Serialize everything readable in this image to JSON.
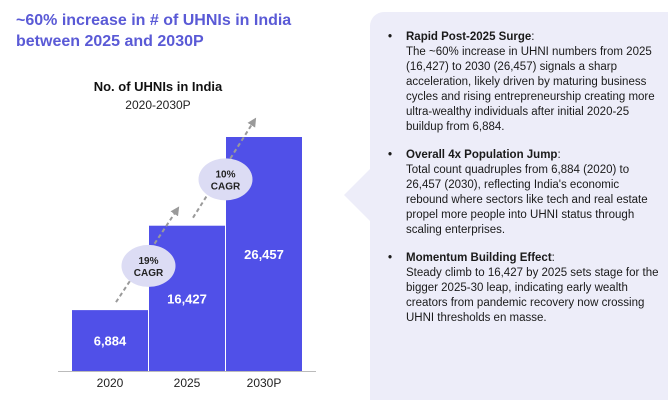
{
  "headline": "~60% increase in # of UHNIs in India between 2025 and 2030P",
  "colors": {
    "accent": "#5a5ad6",
    "bar": "#5050e8",
    "panel": "#ededf9",
    "cagr_bubble": "#dcdcf4",
    "arrow": "#9a9a9a"
  },
  "chart_data": {
    "type": "bar",
    "title": "No. of UHNIs in India",
    "subtitle": "2020-2030P",
    "categories": [
      "2020",
      "2025",
      "2030P"
    ],
    "values": [
      6884,
      16427,
      26457
    ],
    "data_labels": [
      "6,884",
      "16,427",
      "26,457"
    ],
    "ylim": [
      0,
      26457
    ],
    "xlabel": "",
    "ylabel": "",
    "annotations": [
      {
        "text": "19% CAGR",
        "line1": "19%",
        "line2": "CAGR",
        "from": "2020",
        "to": "2025"
      },
      {
        "text": "10% CAGR",
        "line1": "10%",
        "line2": "CAGR",
        "from": "2025",
        "to": "2030P"
      }
    ]
  },
  "points": [
    {
      "head": "Rapid Post-2025 Surge",
      "text": "The ~60% increase in UHNI numbers from 2025 (16,427) to 2030 (26,457) signals a sharp acceleration, likely driven by maturing business cycles and rising entrepreneurship creating more ultra-wealthy individuals after initial 2020-25 buildup from 6,884."
    },
    {
      "head": "Overall 4x Population Jump",
      "text": "Total count quadruples from 6,884 (2020) to 26,457 (2030), reflecting India's economic rebound where sectors like tech and real estate propel more people into UHNI status through scaling enterprises."
    },
    {
      "head": "Momentum Building Effect",
      "text": "Steady climb to 16,427 by 2025 sets stage for the bigger 2025-30 leap, indicating early wealth creators from pandemic recovery now crossing UHNI thresholds en masse."
    }
  ]
}
